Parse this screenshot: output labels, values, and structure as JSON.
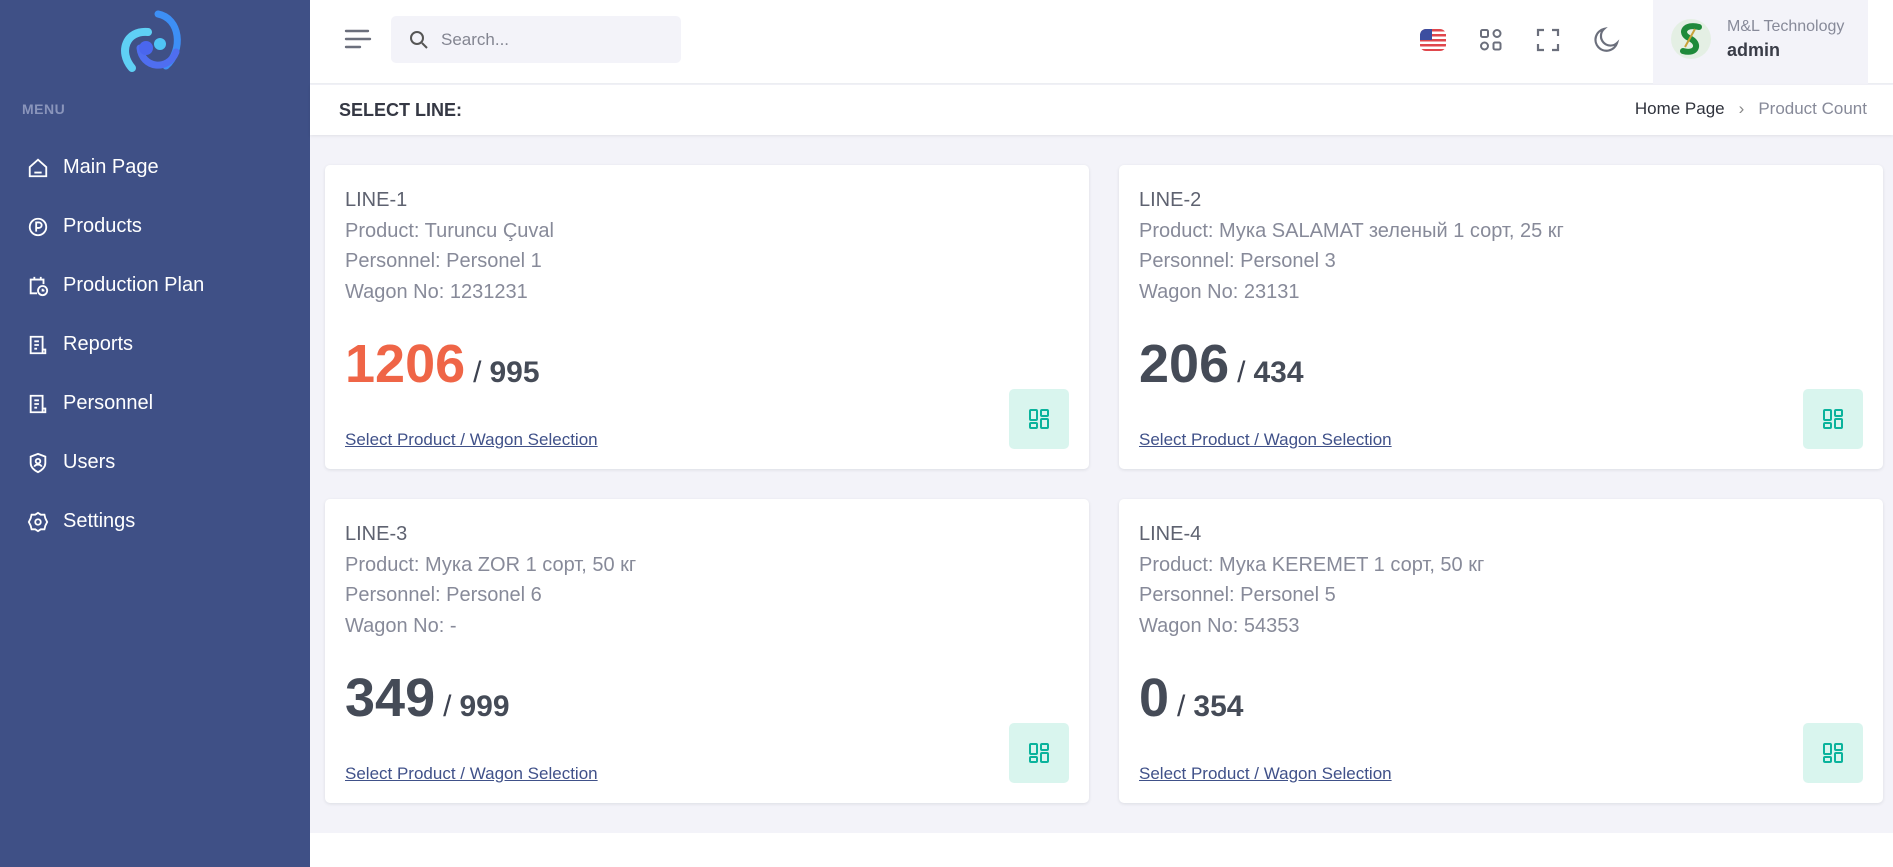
{
  "sidebar": {
    "menu_title": "MENU",
    "items": [
      {
        "label": "Main Page",
        "icon": "home-icon"
      },
      {
        "label": "Products",
        "icon": "product-circle-icon"
      },
      {
        "label": "Production Plan",
        "icon": "calendar-clock-icon"
      },
      {
        "label": "Reports",
        "icon": "document-icon"
      },
      {
        "label": "Personnel",
        "icon": "document-icon"
      },
      {
        "label": "Users",
        "icon": "user-shield-icon"
      },
      {
        "label": "Settings",
        "icon": "gear-icon"
      }
    ]
  },
  "topbar": {
    "search_placeholder": "Search...",
    "user": {
      "company": "M&L Technology",
      "name": "admin"
    }
  },
  "header": {
    "title": "SELECT LINE:",
    "breadcrumb": [
      "Home Page",
      "Product Count"
    ]
  },
  "colors": {
    "sidebar": "#3f5086",
    "over_target": "#ef6547",
    "accent": "#405189",
    "success": "#0ab39c"
  },
  "lines": [
    {
      "title": "LINE-1",
      "product": "Product: Turuncu Çuval",
      "personnel": "Personnel: Personel 1",
      "wagon": "Wagon No: 1231231",
      "count": "1206",
      "target": "995",
      "link": "Select Product / Wagon Selection"
    },
    {
      "title": "LINE-2",
      "product": "Product: Мука SALAMAT зеленый 1 сорт, 25 кг",
      "personnel": "Personnel: Personel 3",
      "wagon": "Wagon No: 23131",
      "count": "206",
      "target": "434",
      "link": "Select Product / Wagon Selection"
    },
    {
      "title": "LINE-3",
      "product": "Product: Мука ZOR 1 сорт, 50 кг",
      "personnel": "Personnel: Personel 6",
      "wagon": "Wagon No: -",
      "count": "349",
      "target": "999",
      "link": "Select Product / Wagon Selection"
    },
    {
      "title": "LINE-4",
      "product": "Product: Мука KEREMET 1 сорт, 50 кг",
      "personnel": "Personnel: Personel 5",
      "wagon": "Wagon No: 54353",
      "count": "0",
      "target": "354",
      "link": "Select Product / Wagon Selection"
    }
  ]
}
